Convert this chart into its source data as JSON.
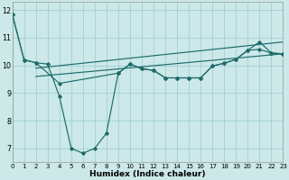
{
  "xlabel": "Humidex (Indice chaleur)",
  "bg_color": "#cce8e8",
  "line_color": "#1e6b6b",
  "grid_color": "#99cccc",
  "xlim": [
    0,
    23
  ],
  "ylim": [
    6.5,
    12.3
  ],
  "xticks": [
    0,
    1,
    2,
    3,
    4,
    5,
    6,
    7,
    8,
    9,
    10,
    11,
    12,
    13,
    14,
    15,
    16,
    17,
    18,
    19,
    20,
    21,
    22,
    23
  ],
  "yticks": [
    7,
    8,
    9,
    10,
    11,
    12
  ],
  "lines": [
    {
      "x": [
        0,
        1,
        2,
        4,
        9,
        10,
        11,
        12,
        13,
        14,
        15,
        16,
        17,
        18,
        19,
        20,
        21,
        22,
        23
      ],
      "y": [
        11.85,
        10.2,
        10.1,
        9.35,
        9.72,
        10.05,
        9.88,
        9.82,
        9.55,
        9.55,
        9.55,
        9.55,
        9.98,
        10.08,
        10.22,
        10.55,
        10.58,
        10.45,
        10.42
      ]
    },
    {
      "x": [
        0,
        1,
        2,
        3,
        4,
        5,
        6,
        7,
        8,
        9,
        10,
        11,
        12,
        13,
        14,
        15,
        16,
        17,
        18,
        19,
        20,
        21,
        22,
        23
      ],
      "y": [
        11.85,
        10.2,
        10.1,
        10.05,
        8.88,
        7.0,
        6.82,
        7.0,
        7.55,
        9.72,
        10.05,
        9.88,
        9.82,
        9.55,
        9.55,
        9.55,
        9.55,
        9.98,
        10.08,
        10.22,
        10.55,
        10.85,
        10.45,
        10.42
      ]
    },
    {
      "x": [
        2,
        23
      ],
      "y": [
        9.6,
        10.42
      ]
    },
    {
      "x": [
        2,
        23
      ],
      "y": [
        9.9,
        10.85
      ]
    }
  ],
  "marker": "D",
  "markersize": 1.8,
  "linewidth": 0.85,
  "xlabel_fontsize": 6.5,
  "xtick_fontsize": 5.0,
  "ytick_fontsize": 5.8
}
